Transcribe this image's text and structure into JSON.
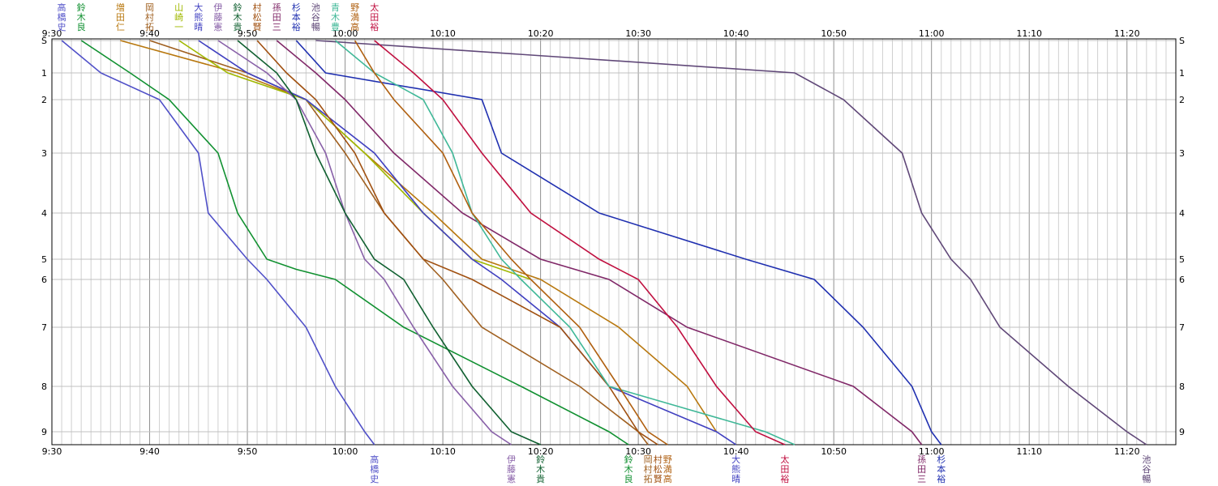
{
  "chart_data": {
    "type": "line",
    "x_unit": "time",
    "x_ticks": [
      "9:30",
      "9:40",
      "9:50",
      "10:00",
      "10:10",
      "10:20",
      "10:30",
      "10:40",
      "10:50",
      "11:00",
      "11:10",
      "11:20"
    ],
    "x_range": [
      "9:30",
      "11:25"
    ],
    "y_ticks": [
      "S",
      "1",
      "2",
      "3",
      "4",
      "5",
      "6",
      "7",
      "8",
      "9"
    ],
    "y_range": [
      0,
      9.25
    ],
    "grid": "minor vertical every minute, horizontal at each checkpoint",
    "series": [
      {
        "name": "高橋史",
        "color": "#5050c8",
        "top_label": "高橋史",
        "bottom_label": "高橋史",
        "points": [
          [
            "9:31",
            0
          ],
          [
            "9:35",
            1
          ],
          [
            "9:41",
            2
          ],
          [
            "9:45",
            3
          ],
          [
            "9:46",
            4
          ],
          [
            "9:50",
            5
          ],
          [
            "9:52",
            6
          ],
          [
            "9:56",
            7
          ],
          [
            "9:59",
            8
          ],
          [
            "10:02",
            9
          ],
          [
            "10:03",
            9.25
          ]
        ]
      },
      {
        "name": "鈴木良",
        "color": "#109030",
        "top_label": "鈴木良",
        "bottom_label": "鈴木良",
        "points": [
          [
            "9:33",
            0
          ],
          [
            "9:38",
            1
          ],
          [
            "9:42",
            2
          ],
          [
            "9:47",
            3
          ],
          [
            "9:49",
            4
          ],
          [
            "9:52",
            5
          ],
          [
            "9:55",
            5.5
          ],
          [
            "9:59",
            6
          ],
          [
            "10:06",
            7
          ],
          [
            "10:18",
            8
          ],
          [
            "10:27",
            9
          ],
          [
            "10:29",
            9.25
          ]
        ]
      },
      {
        "name": "増田仁",
        "color": "#b8780f",
        "top_label": "増田仁",
        "bottom_label": "",
        "points": [
          [
            "9:37",
            0
          ],
          [
            "9:49",
            1
          ],
          [
            "9:56",
            2
          ],
          [
            "10:02",
            3
          ],
          [
            "10:09",
            4
          ],
          [
            "10:14",
            5
          ],
          [
            "10:20",
            6
          ],
          [
            "10:28",
            7
          ],
          [
            "10:35",
            8
          ],
          [
            "10:38",
            9
          ]
        ]
      },
      {
        "name": "岡村拓",
        "color": "#a06020",
        "top_label": "岡村拓",
        "bottom_label": "岡村拓",
        "points": [
          [
            "9:40",
            0
          ],
          [
            "9:50",
            1
          ],
          [
            "9:56",
            2
          ],
          [
            "10:00",
            3
          ],
          [
            "10:04",
            4
          ],
          [
            "10:08",
            5
          ],
          [
            "10:10",
            6
          ],
          [
            "10:14",
            7
          ],
          [
            "10:24",
            8
          ],
          [
            "10:30",
            9
          ],
          [
            "10:31",
            9.25
          ]
        ]
      },
      {
        "name": "山崎一",
        "color": "#a0b800",
        "top_label": "山崎一",
        "bottom_label": "",
        "points": [
          [
            "9:43",
            0
          ],
          [
            "9:48",
            1
          ],
          [
            "9:56",
            2
          ],
          [
            "10:02",
            3
          ],
          [
            "10:08",
            4
          ],
          [
            "10:13",
            5
          ],
          [
            "10:19",
            6
          ]
        ]
      },
      {
        "name": "大熊晴",
        "color": "#4040c0",
        "top_label": "大熊晴",
        "bottom_label": "大熊晴",
        "points": [
          [
            "9:45",
            0
          ],
          [
            "9:50",
            1
          ],
          [
            "9:56",
            2
          ],
          [
            "10:03",
            3
          ],
          [
            "10:08",
            4
          ],
          [
            "10:13",
            5
          ],
          [
            "10:16",
            6
          ],
          [
            "10:22",
            7
          ],
          [
            "10:27",
            8
          ],
          [
            "10:38",
            9
          ],
          [
            "10:40",
            9.25
          ]
        ]
      },
      {
        "name": "伊藤憲",
        "color": "#8860a8",
        "top_label": "伊藤憲",
        "bottom_label": "伊藤憲",
        "points": [
          [
            "9:47",
            0
          ],
          [
            "9:52",
            1
          ],
          [
            "9:55",
            2
          ],
          [
            "9:58",
            3
          ],
          [
            "10:00",
            4
          ],
          [
            "10:02",
            5
          ],
          [
            "10:04",
            6
          ],
          [
            "10:07",
            7
          ],
          [
            "10:11",
            8
          ],
          [
            "10:15",
            9
          ],
          [
            "10:17",
            9.25
          ]
        ]
      },
      {
        "name": "鈴木貴",
        "color": "#106030",
        "top_label": "鈴木貴",
        "bottom_label": "鈴木貴",
        "points": [
          [
            "9:49",
            0
          ],
          [
            "9:53",
            1
          ],
          [
            "9:55",
            2
          ],
          [
            "9:57",
            3
          ],
          [
            "10:00",
            4
          ],
          [
            "10:03",
            5
          ],
          [
            "10:06",
            6
          ],
          [
            "10:09",
            7
          ],
          [
            "10:13",
            8
          ],
          [
            "10:17",
            9
          ],
          [
            "10:20",
            9.25
          ]
        ]
      },
      {
        "name": "村松賢",
        "color": "#a05010",
        "top_label": "村松賢",
        "bottom_label": "村松賢",
        "points": [
          [
            "9:51",
            0
          ],
          [
            "9:54",
            1
          ],
          [
            "9:57",
            2
          ],
          [
            "10:01",
            3
          ],
          [
            "10:04",
            4
          ],
          [
            "10:08",
            5
          ],
          [
            "10:13",
            6
          ],
          [
            "10:22",
            7
          ],
          [
            "10:27",
            8
          ],
          [
            "10:30",
            9
          ],
          [
            "10:32",
            9.25
          ]
        ]
      },
      {
        "name": "孫田三",
        "color": "#802868",
        "top_label": "孫田三",
        "bottom_label": "孫田三",
        "points": [
          [
            "9:53",
            0
          ],
          [
            "9:57",
            1
          ],
          [
            "10:00",
            2
          ],
          [
            "10:05",
            3
          ],
          [
            "10:12",
            4
          ],
          [
            "10:20",
            5
          ],
          [
            "10:27",
            6
          ],
          [
            "10:35",
            7
          ],
          [
            "10:52",
            8
          ],
          [
            "10:58",
            9
          ],
          [
            "10:59",
            9.25
          ]
        ]
      },
      {
        "name": "杉本裕",
        "color": "#2030b0",
        "top_label": "杉本裕",
        "bottom_label": "杉本裕",
        "points": [
          [
            "9:55",
            0
          ],
          [
            "9:58",
            1
          ],
          [
            "10:14",
            2
          ],
          [
            "10:16",
            3
          ],
          [
            "10:26",
            4
          ],
          [
            "10:41",
            5
          ],
          [
            "10:48",
            6
          ],
          [
            "10:53",
            7
          ],
          [
            "10:58",
            8
          ],
          [
            "11:00",
            9
          ],
          [
            "11:01",
            9.25
          ]
        ]
      },
      {
        "name": "池谷暢",
        "color": "#604878",
        "top_label": "池谷暢",
        "bottom_label": "池谷暢",
        "points": [
          [
            "9:57",
            0
          ],
          [
            "10:46",
            1
          ],
          [
            "10:51",
            2
          ],
          [
            "10:57",
            3
          ],
          [
            "10:59",
            4
          ],
          [
            "11:02",
            5
          ],
          [
            "11:04",
            6
          ],
          [
            "11:07",
            7
          ],
          [
            "11:14",
            8
          ],
          [
            "11:20",
            9
          ],
          [
            "11:22",
            9.25
          ]
        ]
      },
      {
        "name": "青木豊",
        "color": "#40b898",
        "top_label": "青木豊",
        "bottom_label": "",
        "points": [
          [
            "9:59",
            0
          ],
          [
            "10:03",
            1
          ],
          [
            "10:08",
            2
          ],
          [
            "10:11",
            3
          ],
          [
            "10:13",
            4
          ],
          [
            "10:16",
            5
          ],
          [
            "10:18",
            6
          ],
          [
            "10:23",
            7
          ],
          [
            "10:27",
            8
          ],
          [
            "10:43",
            9
          ],
          [
            "10:46",
            9.25
          ]
        ]
      },
      {
        "name": "野満高",
        "color": "#b06010",
        "top_label": "野満高",
        "bottom_label": "野満高",
        "points": [
          [
            "10:01",
            0
          ],
          [
            "10:03",
            1
          ],
          [
            "10:05",
            2
          ],
          [
            "10:10",
            3
          ],
          [
            "10:13",
            4
          ],
          [
            "10:17",
            5
          ],
          [
            "10:19",
            6
          ],
          [
            "10:24",
            7
          ],
          [
            "10:28",
            8
          ],
          [
            "10:31",
            9
          ],
          [
            "10:33",
            9.25
          ]
        ]
      },
      {
        "name": "太田裕",
        "color": "#c01040",
        "top_label": "太田裕",
        "bottom_label": "太田裕",
        "points": [
          [
            "10:03",
            0
          ],
          [
            "10:07",
            1
          ],
          [
            "10:10",
            2
          ],
          [
            "10:14",
            3
          ],
          [
            "10:19",
            4
          ],
          [
            "10:26",
            5
          ],
          [
            "10:30",
            6
          ],
          [
            "10:34",
            7
          ],
          [
            "10:38",
            8
          ],
          [
            "10:42",
            9
          ],
          [
            "10:45",
            9.25
          ]
        ]
      }
    ]
  }
}
